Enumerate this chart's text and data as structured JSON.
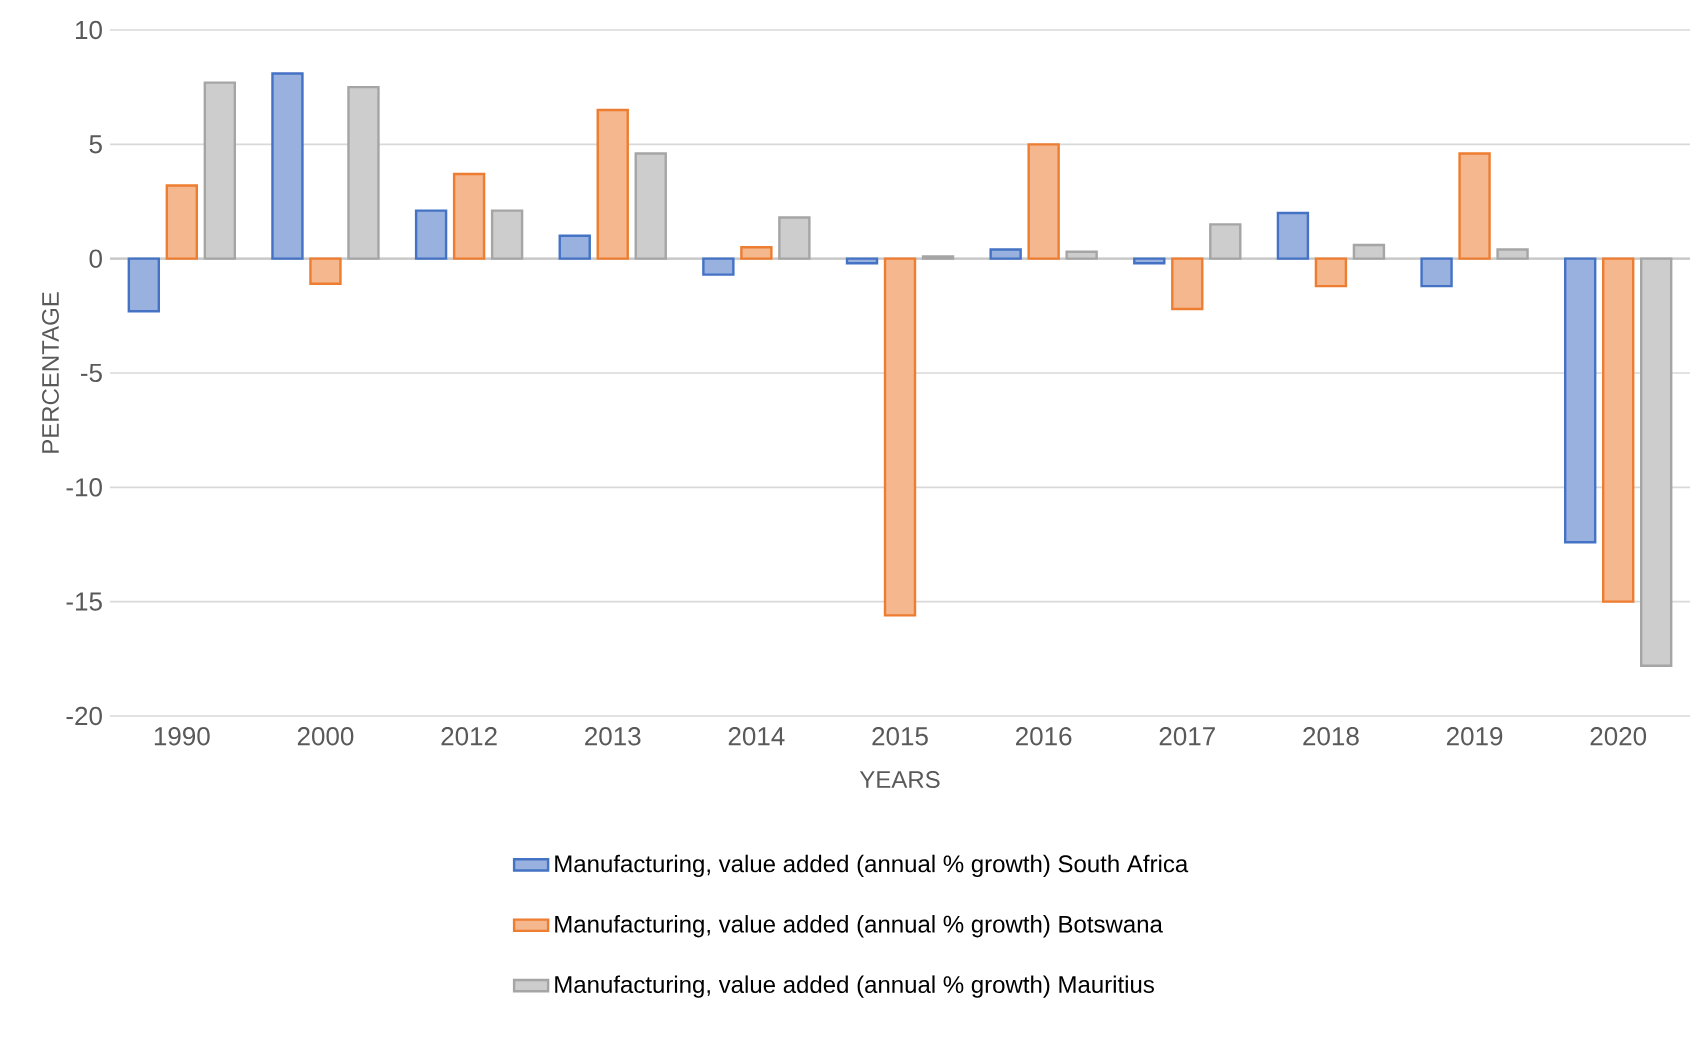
{
  "chart_data": {
    "type": "bar",
    "xlabel": "YEARS",
    "ylabel": "PERCENTAGE",
    "categories": [
      "1990",
      "2000",
      "2012",
      "2013",
      "2014",
      "2015",
      "2016",
      "2017",
      "2018",
      "2019",
      "2020"
    ],
    "series": [
      {
        "name": "Manufacturing, value added (annual % growth) South Africa",
        "color": "#4472c4",
        "values": [
          -2.3,
          8.1,
          2.1,
          1.0,
          -0.7,
          -0.2,
          0.4,
          -0.2,
          2.0,
          -1.2,
          -12.4
        ]
      },
      {
        "name": "Manufacturing, value added (annual % growth) Botswana",
        "color": "#ed7d31",
        "values": [
          3.2,
          -1.1,
          3.7,
          6.5,
          0.5,
          -15.6,
          5.0,
          -2.2,
          -1.2,
          4.6,
          -15.0
        ]
      },
      {
        "name": "Manufacturing, value added (annual % growth) Mauritius",
        "color": "#a5a5a5",
        "values": [
          7.7,
          7.5,
          2.1,
          4.6,
          1.8,
          0.1,
          0.3,
          1.5,
          0.6,
          0.4,
          -17.8
        ]
      }
    ],
    "ylim": [
      -20,
      10
    ],
    "yticks": [
      -20,
      -15,
      -10,
      -5,
      0,
      5,
      10
    ],
    "grid": "y",
    "legend": "bottom"
  }
}
